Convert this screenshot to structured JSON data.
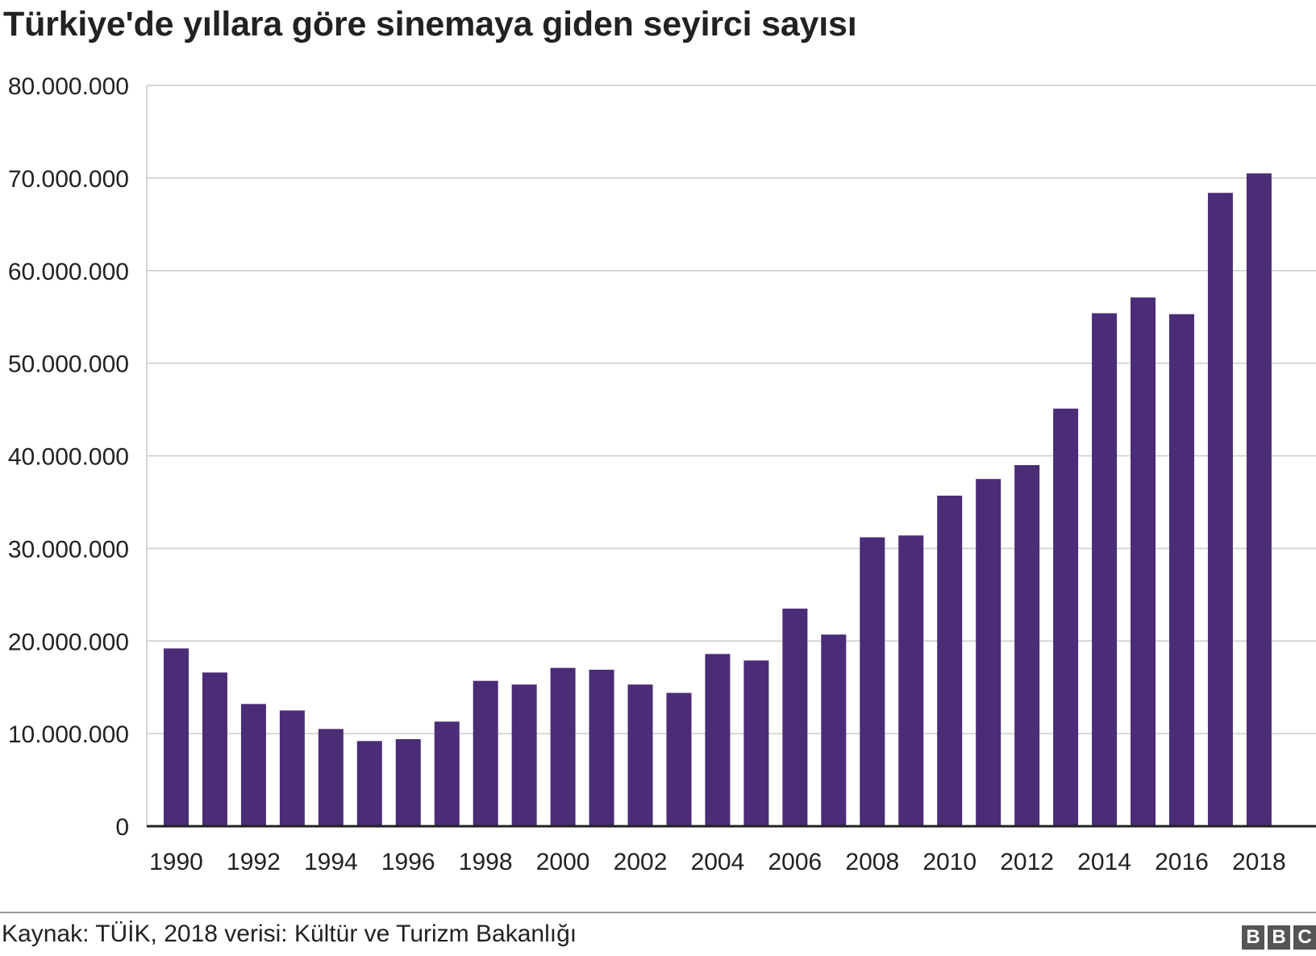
{
  "title": "Türkiye'de yıllara göre sinemaya giden seyirci sayısı",
  "source": "Kaynak: TÜİK, 2018 verisi: Kültür ve Turizm Bakanlığı",
  "logo": [
    "B",
    "B",
    "C"
  ],
  "colors": {
    "bar": "#4b2c77",
    "grid": "#cccccc",
    "axis": "#222222",
    "text": "#222222"
  },
  "chart_data": {
    "type": "bar",
    "title": "Türkiye'de yıllara göre sinemaya giden seyirci sayısı",
    "xlabel": "",
    "ylabel": "",
    "ylim": [
      0,
      80000000
    ],
    "yticks": [
      0,
      10000000,
      20000000,
      30000000,
      40000000,
      50000000,
      60000000,
      70000000,
      80000000
    ],
    "ytick_labels": [
      "0",
      "10.000.000",
      "20.000.000",
      "30.000.000",
      "40.000.000",
      "50.000.000",
      "60.000.000",
      "70.000.000",
      "80.000.000"
    ],
    "xtick_labels": [
      "1990",
      "1992",
      "1994",
      "1996",
      "1998",
      "2000",
      "2002",
      "2004",
      "2006",
      "2008",
      "2010",
      "2012",
      "2014",
      "2016",
      "2018"
    ],
    "grid": true,
    "categories": [
      "1990",
      "1991",
      "1992",
      "1993",
      "1994",
      "1995",
      "1996",
      "1997",
      "1998",
      "1999",
      "2000",
      "2001",
      "2002",
      "2003",
      "2004",
      "2005",
      "2006",
      "2007",
      "2008",
      "2009",
      "2010",
      "2011",
      "2012",
      "2013",
      "2014",
      "2015",
      "2016",
      "2017",
      "2018"
    ],
    "values": [
      19200000,
      16600000,
      13200000,
      12500000,
      10500000,
      9200000,
      9400000,
      11300000,
      15700000,
      15300000,
      17100000,
      16900000,
      15300000,
      14400000,
      18600000,
      17900000,
      23500000,
      20700000,
      31200000,
      31400000,
      35700000,
      37500000,
      39000000,
      45100000,
      55400000,
      57100000,
      55300000,
      68400000,
      70500000
    ]
  }
}
